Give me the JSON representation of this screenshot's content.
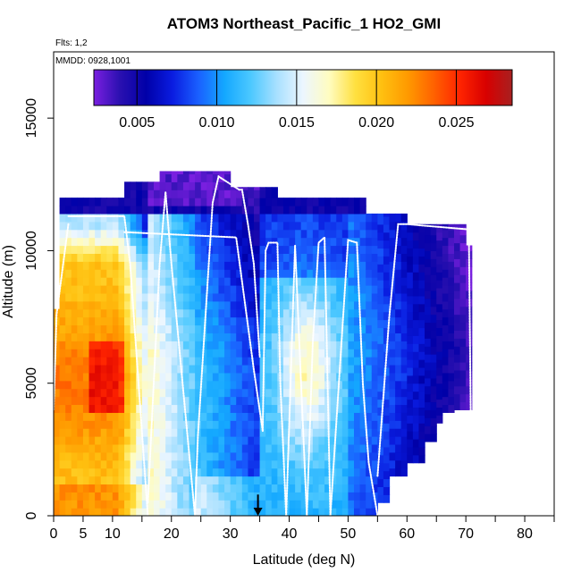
{
  "chart_data": {
    "type": "heatmap",
    "title": "ATOM3 Northeast_Pacific_1 HO2_GMI",
    "subtitle_flights": "Flts: 1,2",
    "subtitle_dates": "MMDD: 0928,1001",
    "xlabel": "Latitude (deg N)",
    "ylabel": "Altitude (m)",
    "xlim": [
      0,
      85
    ],
    "ylim": [
      0,
      17500
    ],
    "x_ticks": [
      0,
      5,
      10,
      20,
      30,
      40,
      50,
      60,
      70,
      80
    ],
    "x_minor_ticks": [
      15,
      25,
      35,
      45,
      55,
      65,
      75,
      85
    ],
    "y_ticks": [
      0,
      5000,
      10000,
      15000
    ],
    "colorbar": {
      "min": 0.0023,
      "max": 0.0285,
      "ticks": [
        0.005,
        0.01,
        0.015,
        0.02,
        0.025
      ],
      "tick_labels": [
        "0.005",
        "0.010",
        "0.015",
        "0.020",
        "0.025"
      ],
      "colors": [
        "#7a1fe0",
        "#2a10b0",
        "#0000a8",
        "#0a1ce0",
        "#1a60ff",
        "#14a8ff",
        "#4cc8ff",
        "#a8e0ff",
        "#ecf6ff",
        "#fffcc0",
        "#ffe040",
        "#ffc010",
        "#ff9a00",
        "#ff6200",
        "#ff2400",
        "#d80000",
        "#a82020"
      ]
    },
    "profiles": [
      {
        "lat": [
          0,
          0.5,
          2.5
        ],
        "alt": [
          4000,
          7600,
          11000
        ]
      },
      {
        "lat": [
          2.5,
          12,
          13,
          16
        ],
        "alt": [
          11300,
          11300,
          9500,
          0
        ]
      },
      {
        "lat": [
          16,
          18,
          19
        ],
        "alt": [
          500,
          9500,
          12200
        ]
      },
      {
        "lat": [
          19,
          20,
          24,
          24.5,
          27,
          28,
          31.5,
          32,
          33,
          34,
          35
        ],
        "alt": [
          12200,
          9500,
          0,
          3000,
          11800,
          12800,
          12300,
          12300,
          11000,
          9500,
          6000
        ]
      },
      {
        "lat": [
          12,
          31,
          34,
          35.5
        ],
        "alt": [
          10700,
          10500,
          5500,
          3200
        ]
      },
      {
        "lat": [
          35.5,
          36,
          36.5,
          38,
          38.5,
          39.5
        ],
        "alt": [
          3200,
          10000,
          10300,
          10300,
          5000,
          0
        ]
      },
      {
        "lat": [
          39.5,
          41,
          43
        ],
        "alt": [
          0,
          10200,
          0
        ]
      },
      {
        "lat": [
          43,
          44,
          45,
          46,
          47
        ],
        "alt": [
          0,
          6500,
          10300,
          10500,
          0
        ]
      },
      {
        "lat": [
          47,
          50,
          51.5,
          52.5,
          53.5,
          55
        ],
        "alt": [
          0,
          10400,
          10300,
          5000,
          2000,
          0
        ]
      },
      {
        "lat": [
          55,
          57,
          58.5,
          60,
          70.5
        ],
        "alt": [
          1500,
          7500,
          11000,
          11000,
          10800
        ]
      },
      {
        "lat": [
          70.5,
          71
        ],
        "alt": [
          10800,
          0
        ]
      }
    ],
    "marker": {
      "type": "arrow",
      "lat": 34.7,
      "alt_top": 800,
      "alt_bottom": 0
    }
  }
}
